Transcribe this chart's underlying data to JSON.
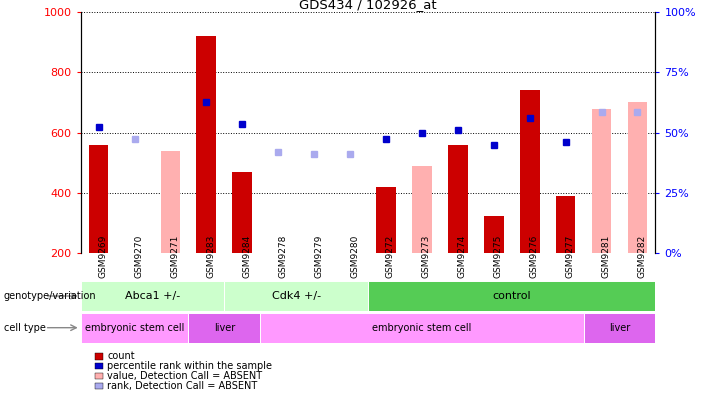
{
  "title": "GDS434 / 102926_at",
  "samples": [
    "GSM9269",
    "GSM9270",
    "GSM9271",
    "GSM9283",
    "GSM9284",
    "GSM9278",
    "GSM9279",
    "GSM9280",
    "GSM9272",
    "GSM9273",
    "GSM9274",
    "GSM9275",
    "GSM9276",
    "GSM9277",
    "GSM9281",
    "GSM9282"
  ],
  "count_values": [
    560,
    null,
    null,
    920,
    470,
    null,
    null,
    null,
    420,
    null,
    560,
    325,
    740,
    390,
    null,
    null
  ],
  "count_absent": [
    null,
    null,
    540,
    null,
    null,
    null,
    null,
    null,
    null,
    490,
    null,
    null,
    null,
    null,
    680,
    700
  ],
  "rank_present": [
    620,
    null,
    null,
    700,
    630,
    null,
    null,
    null,
    580,
    600,
    610,
    560,
    650,
    570,
    null,
    null
  ],
  "rank_absent": [
    null,
    580,
    null,
    null,
    null,
    535,
    530,
    530,
    null,
    null,
    null,
    null,
    null,
    null,
    670,
    670
  ],
  "ylim_left": [
    200,
    1000
  ],
  "ylim_right": [
    0,
    100
  ],
  "yticks_left": [
    200,
    400,
    600,
    800,
    1000
  ],
  "yticks_right": [
    0,
    25,
    50,
    75,
    100
  ],
  "color_count_present": "#cc0000",
  "color_count_absent": "#ffb0b0",
  "color_rank_present": "#0000cc",
  "color_rank_absent": "#aaaaee",
  "bg_color": "#ffffff",
  "plot_bg": "#ffffff",
  "genotype_groups": [
    {
      "label": "Abca1 +/-",
      "start": 0,
      "end": 4,
      "color": "#ccffcc"
    },
    {
      "label": "Cdk4 +/-",
      "start": 4,
      "end": 8,
      "color": "#ccffcc"
    },
    {
      "label": "control",
      "start": 8,
      "end": 16,
      "color": "#55cc55"
    }
  ],
  "celltype_groups": [
    {
      "label": "embryonic stem cell",
      "start": 0,
      "end": 3,
      "color": "#ff99ff"
    },
    {
      "label": "liver",
      "start": 3,
      "end": 5,
      "color": "#dd66ee"
    },
    {
      "label": "embryonic stem cell",
      "start": 5,
      "end": 14,
      "color": "#ff99ff"
    },
    {
      "label": "liver",
      "start": 14,
      "end": 16,
      "color": "#dd66ee"
    }
  ],
  "legend_items": [
    {
      "label": "count",
      "color": "#cc0000"
    },
    {
      "label": "percentile rank within the sample",
      "color": "#0000cc"
    },
    {
      "label": "value, Detection Call = ABSENT",
      "color": "#ffb0b0"
    },
    {
      "label": "rank, Detection Call = ABSENT",
      "color": "#aaaaee"
    }
  ],
  "geno_border_color": "#aaffaa",
  "cell_border_color": "#ffaaff"
}
